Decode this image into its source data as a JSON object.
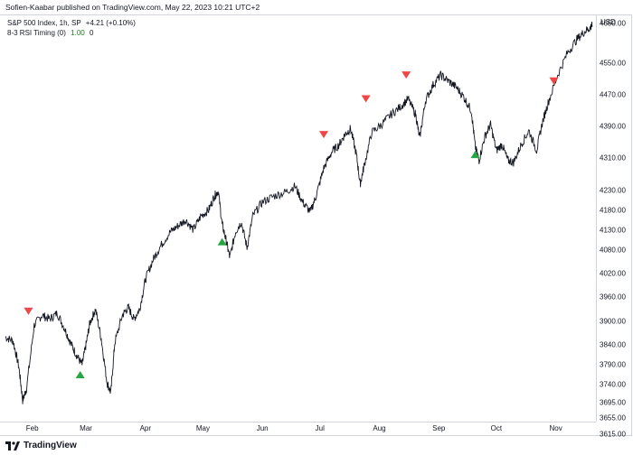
{
  "header": {
    "published": "Sofien-Kaabar published on TradingView.com, May 22, 2023 10:21 UTC+2"
  },
  "legend": {
    "symbol": "S&P 500 Index, 1h, SP",
    "change": "+4.21 (+0.10%)",
    "indicator": "8-3 RSI Timing (0)",
    "indicator_value": "1.00",
    "indicator_extra": "0"
  },
  "axis": {
    "currency": "USD"
  },
  "footer": {
    "brand": "TradingView"
  },
  "colors": {
    "price": "#131722",
    "buy": "#26a641",
    "sell": "#f04646",
    "grid": "#d1d4dc"
  },
  "chart_data": {
    "type": "line",
    "ytick_labels": [
      "4650.00",
      "4550.00",
      "4470.00",
      "4390.00",
      "4310.00",
      "4230.00",
      "4180.00",
      "4130.00",
      "4080.00",
      "4020.00",
      "3960.00",
      "3900.00",
      "3840.00",
      "3790.00",
      "3740.00",
      "3695.00",
      "3655.00",
      "3615.00"
    ],
    "yticks": [
      4650,
      4550,
      4470,
      4390,
      4310,
      4230,
      4180,
      4130,
      4080,
      4020,
      3960,
      3900,
      3840,
      3790,
      3740,
      3695,
      3655,
      3615
    ],
    "xtick_labels": [
      "Feb",
      "Mar",
      "Apr",
      "May",
      "Jun",
      "Jul",
      "Aug",
      "Sep",
      "Oct",
      "Nov"
    ],
    "xticks": [
      "2023-02-01",
      "2023-03-01",
      "2023-04-01",
      "2023-05-01",
      "2023-06-01",
      "2023-07-01",
      "2023-08-01",
      "2023-09-01",
      "2023-10-01",
      "2023-11-01"
    ],
    "price_series": [
      [
        "2023-01-18",
        3860
      ],
      [
        "2023-01-22",
        3850
      ],
      [
        "2023-01-25",
        3785
      ],
      [
        "2023-01-27",
        3700
      ],
      [
        "2023-01-29",
        3730
      ],
      [
        "2023-02-02",
        3890
      ],
      [
        "2023-02-06",
        3915
      ],
      [
        "2023-02-10",
        3905
      ],
      [
        "2023-02-14",
        3920
      ],
      [
        "2023-02-18",
        3880
      ],
      [
        "2023-02-21",
        3845
      ],
      [
        "2023-02-24",
        3815
      ],
      [
        "2023-02-27",
        3790
      ],
      [
        "2023-03-01",
        3840
      ],
      [
        "2023-03-03",
        3895
      ],
      [
        "2023-03-06",
        3930
      ],
      [
        "2023-03-09",
        3855
      ],
      [
        "2023-03-12",
        3745
      ],
      [
        "2023-03-14",
        3720
      ],
      [
        "2023-03-16",
        3845
      ],
      [
        "2023-03-20",
        3915
      ],
      [
        "2023-03-23",
        3935
      ],
      [
        "2023-03-26",
        3905
      ],
      [
        "2023-03-29",
        3930
      ],
      [
        "2023-04-01",
        4005
      ],
      [
        "2023-04-05",
        4055
      ],
      [
        "2023-04-09",
        4090
      ],
      [
        "2023-04-14",
        4125
      ],
      [
        "2023-04-18",
        4140
      ],
      [
        "2023-04-22",
        4155
      ],
      [
        "2023-04-26",
        4130
      ],
      [
        "2023-04-30",
        4165
      ],
      [
        "2023-05-04",
        4180
      ],
      [
        "2023-05-07",
        4215
      ],
      [
        "2023-05-09",
        4228
      ],
      [
        "2023-05-11",
        4145
      ],
      [
        "2023-05-13",
        4105
      ],
      [
        "2023-05-15",
        4060
      ],
      [
        "2023-05-18",
        4125
      ],
      [
        "2023-05-21",
        4150
      ],
      [
        "2023-05-24",
        4085
      ],
      [
        "2023-05-27",
        4165
      ],
      [
        "2023-06-01",
        4200
      ],
      [
        "2023-06-07",
        4215
      ],
      [
        "2023-06-13",
        4225
      ],
      [
        "2023-06-18",
        4240
      ],
      [
        "2023-06-22",
        4200
      ],
      [
        "2023-06-26",
        4175
      ],
      [
        "2023-06-29",
        4215
      ],
      [
        "2023-07-03",
        4285
      ],
      [
        "2023-07-07",
        4325
      ],
      [
        "2023-07-11",
        4345
      ],
      [
        "2023-07-14",
        4370
      ],
      [
        "2023-07-17",
        4385
      ],
      [
        "2023-07-20",
        4320
      ],
      [
        "2023-07-22",
        4245
      ],
      [
        "2023-07-24",
        4290
      ],
      [
        "2023-07-28",
        4375
      ],
      [
        "2023-08-02",
        4395
      ],
      [
        "2023-08-07",
        4420
      ],
      [
        "2023-08-12",
        4440
      ],
      [
        "2023-08-16",
        4460
      ],
      [
        "2023-08-20",
        4420
      ],
      [
        "2023-08-22",
        4360
      ],
      [
        "2023-08-25",
        4455
      ],
      [
        "2023-08-29",
        4495
      ],
      [
        "2023-09-02",
        4520
      ],
      [
        "2023-09-06",
        4505
      ],
      [
        "2023-09-10",
        4490
      ],
      [
        "2023-09-14",
        4465
      ],
      [
        "2023-09-18",
        4430
      ],
      [
        "2023-09-20",
        4340
      ],
      [
        "2023-09-22",
        4305
      ],
      [
        "2023-09-25",
        4365
      ],
      [
        "2023-09-28",
        4395
      ],
      [
        "2023-10-01",
        4330
      ],
      [
        "2023-10-04",
        4345
      ],
      [
        "2023-10-07",
        4305
      ],
      [
        "2023-10-10",
        4300
      ],
      [
        "2023-10-14",
        4345
      ],
      [
        "2023-10-18",
        4380
      ],
      [
        "2023-10-22",
        4330
      ],
      [
        "2023-10-25",
        4400
      ],
      [
        "2023-10-28",
        4450
      ],
      [
        "2023-11-02",
        4520
      ],
      [
        "2023-11-07",
        4575
      ],
      [
        "2023-11-12",
        4610
      ],
      [
        "2023-11-16",
        4630
      ],
      [
        "2023-11-19",
        4640
      ],
      [
        "2023-11-20",
        4645
      ]
    ],
    "markers": [
      {
        "type": "sell",
        "date": "2023-01-30",
        "price": 3925
      },
      {
        "type": "buy",
        "date": "2023-02-26",
        "price": 3765
      },
      {
        "type": "buy",
        "date": "2023-05-11",
        "price": 4100
      },
      {
        "type": "sell",
        "date": "2023-07-03",
        "price": 4370
      },
      {
        "type": "sell",
        "date": "2023-07-25",
        "price": 4460
      },
      {
        "type": "sell",
        "date": "2023-08-15",
        "price": 4520
      },
      {
        "type": "buy",
        "date": "2023-09-20",
        "price": 4320
      },
      {
        "type": "sell",
        "date": "2023-10-31",
        "price": 4505
      }
    ]
  }
}
